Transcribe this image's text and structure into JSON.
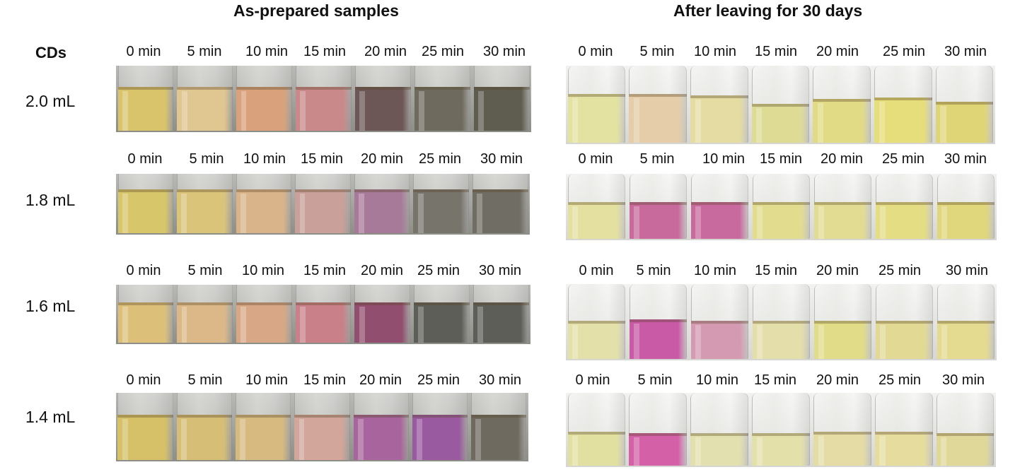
{
  "panels": {
    "left_title": "As-prepared samples",
    "right_title": "After leaving for 30 days"
  },
  "cds_heading": "CDs",
  "rows": [
    {
      "label": "2.0 mL",
      "times": [
        "0 min",
        "5 min",
        "10 min",
        "15 min",
        "20 min",
        "25 min",
        "30 min"
      ],
      "before": [
        "#d9c46c",
        "#e0c690",
        "#d9a27c",
        "#c9898a",
        "#6c5656",
        "#6e6a5e",
        "#5f5c50"
      ],
      "after": [
        "#e4e2a0",
        "#e4cda8",
        "#e4dca2",
        "#dedc94",
        "#e1db86",
        "#e6de7a",
        "#e0d576"
      ]
    },
    {
      "label": "1.8 mL",
      "times": [
        "0 min",
        "5 min",
        "10 min",
        "15 min",
        "20 min",
        "25 min",
        "30 min"
      ],
      "before": [
        "#d8c66a",
        "#dac47a",
        "#d9b48a",
        "#c9a09a",
        "#a87a9a",
        "#77746c",
        "#706e64"
      ],
      "after": [
        "#e3e0a0",
        "#c86a9c",
        "#c96a9e",
        "#e2dc8e",
        "#e2dc92",
        "#e5dd84",
        "#e0d67c"
      ]
    },
    {
      "label": "1.6 mL",
      "times": [
        "0 min",
        "5 min",
        "10 min",
        "15 min",
        "20 min",
        "25 min",
        "30 min"
      ],
      "before": [
        "#dcc07a",
        "#dcb888",
        "#d8a886",
        "#c98088",
        "#924e6e",
        "#5e5e58",
        "#5e5e58"
      ],
      "after": [
        "#e4e0aa",
        "#c95aa6",
        "#d49ab2",
        "#e4deaa",
        "#e0dc88",
        "#e2da94",
        "#e4da90"
      ]
    },
    {
      "label": "1.4 mL",
      "times": [
        "0 min",
        "5 min",
        "10 min",
        "15 min",
        "20 min",
        "25 min",
        "30 min"
      ],
      "before": [
        "#d6c168",
        "#d6be76",
        "#d6ba80",
        "#d2a69a",
        "#a8649c",
        "#9a5aa0",
        "#6e6a60"
      ],
      "after": [
        "#e2e0a0",
        "#d460a8",
        "#e2e0ae",
        "#e4e0aa",
        "#e4dca4",
        "#e6dc9e",
        "#e0d898"
      ]
    }
  ]
}
